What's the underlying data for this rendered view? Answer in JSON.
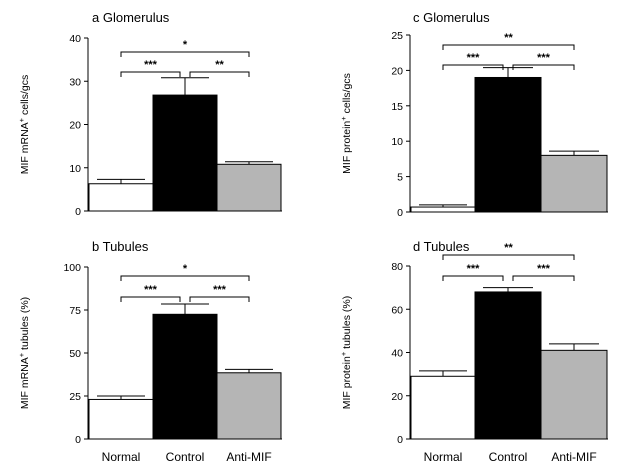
{
  "chart_data": [
    {
      "type": "bar",
      "title": "a  Glomerulus",
      "ylabel": "MIF mRNA",
      "ylabel_sup": "+",
      "ylabel_rest": " cells/gcs",
      "categories": [
        "Normal",
        "Control",
        "Anti-MIF"
      ],
      "values": [
        6.3,
        26.8,
        10.8
      ],
      "errors": [
        1.0,
        4.0,
        0.6
      ],
      "colors": [
        "#ffffff",
        "#000000",
        "#b5b5b5"
      ],
      "ylim": [
        0,
        40
      ],
      "yticks": [
        "0",
        "10",
        "20",
        "30",
        "40"
      ],
      "show_xlabels": false,
      "significance": [
        {
          "from": 0,
          "to": 1,
          "label": "***"
        },
        {
          "from": 1,
          "to": 2,
          "label": "**"
        },
        {
          "from": 0,
          "to": 2,
          "label": "*"
        }
      ]
    },
    {
      "type": "bar",
      "title": "b  Tubules",
      "ylabel": "MIF mRNA",
      "ylabel_sup": "+",
      "ylabel_rest": " tubules (%)",
      "categories": [
        "Normal",
        "Control",
        "Anti-MIF"
      ],
      "values": [
        23,
        72.5,
        38.5
      ],
      "errors": [
        2.0,
        6.0,
        2.0
      ],
      "colors": [
        "#ffffff",
        "#000000",
        "#b5b5b5"
      ],
      "ylim": [
        0,
        100
      ],
      "yticks": [
        "0",
        "25",
        "50",
        "75",
        "100"
      ],
      "show_xlabels": true,
      "significance": [
        {
          "from": 0,
          "to": 1,
          "label": "***"
        },
        {
          "from": 1,
          "to": 2,
          "label": "***"
        },
        {
          "from": 0,
          "to": 2,
          "label": "*"
        }
      ]
    },
    {
      "type": "bar",
      "title": "c  Glomerulus",
      "ylabel": "MIF protein",
      "ylabel_sup": "+",
      "ylabel_rest": " cells/gcs",
      "categories": [
        "Normal",
        "Control",
        "Anti-MIF"
      ],
      "values": [
        0.7,
        19,
        8
      ],
      "errors": [
        0.3,
        1.4,
        0.6
      ],
      "colors": [
        "#ffffff",
        "#000000",
        "#b5b5b5"
      ],
      "ylim": [
        0,
        25
      ],
      "yticks": [
        "0",
        "5",
        "10",
        "15",
        "20",
        "25"
      ],
      "show_xlabels": false,
      "significance": [
        {
          "from": 0,
          "to": 1,
          "label": "***"
        },
        {
          "from": 1,
          "to": 2,
          "label": "***"
        },
        {
          "from": 0,
          "to": 2,
          "label": "**"
        }
      ]
    },
    {
      "type": "bar",
      "title": "d  Tubules",
      "ylabel": "MIF protein",
      "ylabel_sup": "+",
      "ylabel_rest": " tubules (%)",
      "categories": [
        "Normal",
        "Control",
        "Anti-MIF"
      ],
      "values": [
        29,
        68,
        41
      ],
      "errors": [
        2.5,
        2.0,
        3.0
      ],
      "colors": [
        "#ffffff",
        "#000000",
        "#b5b5b5"
      ],
      "ylim": [
        0,
        80
      ],
      "yticks": [
        "0",
        "20",
        "40",
        "60",
        "80"
      ],
      "show_xlabels": true,
      "significance": [
        {
          "from": 0,
          "to": 1,
          "label": "***"
        },
        {
          "from": 1,
          "to": 2,
          "label": "***"
        },
        {
          "from": 0,
          "to": 2,
          "label": "**"
        }
      ]
    }
  ]
}
